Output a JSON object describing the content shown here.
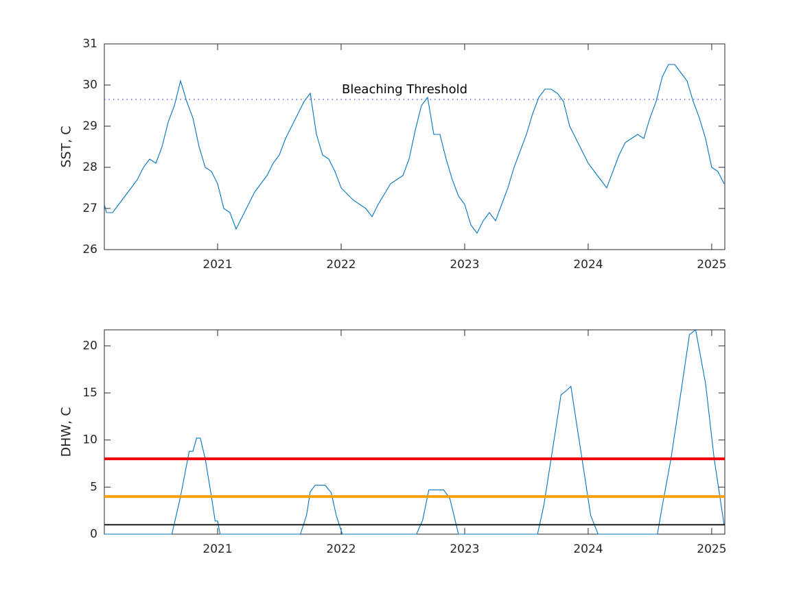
{
  "chart_data": [
    {
      "type": "line",
      "ylabel": "SST, C",
      "color": "#0072bd",
      "x": [
        2020.083,
        2020.1,
        2020.15,
        2020.2,
        2020.25,
        2020.3,
        2020.35,
        2020.4,
        2020.45,
        2020.5,
        2020.55,
        2020.6,
        2020.65,
        2020.7,
        2020.75,
        2020.8,
        2020.85,
        2020.9,
        2020.95,
        2021.0,
        2021.05,
        2021.1,
        2021.15,
        2021.2,
        2021.25,
        2021.3,
        2021.35,
        2021.4,
        2021.45,
        2021.5,
        2021.55,
        2021.6,
        2021.65,
        2021.7,
        2021.75,
        2021.8,
        2021.85,
        2021.9,
        2021.95,
        2022.0,
        2022.1,
        2022.2,
        2022.25,
        2022.3,
        2022.4,
        2022.5,
        2022.55,
        2022.6,
        2022.65,
        2022.7,
        2022.75,
        2022.8,
        2022.85,
        2022.9,
        2022.95,
        2023.0,
        2023.05,
        2023.1,
        2023.15,
        2023.2,
        2023.25,
        2023.3,
        2023.35,
        2023.4,
        2023.45,
        2023.5,
        2023.55,
        2023.6,
        2023.65,
        2023.7,
        2023.75,
        2023.8,
        2023.85,
        2023.9,
        2023.95,
        2024.0,
        2024.05,
        2024.1,
        2024.15,
        2024.2,
        2024.25,
        2024.3,
        2024.35,
        2024.4,
        2024.45,
        2024.5,
        2024.55,
        2024.6,
        2024.65,
        2024.7,
        2024.75,
        2024.8,
        2024.85,
        2024.9,
        2024.95,
        2025.0,
        2025.05,
        2025.1
      ],
      "values": [
        27.1,
        26.9,
        26.9,
        27.1,
        27.3,
        27.5,
        27.7,
        28.0,
        28.2,
        28.1,
        28.5,
        29.1,
        29.5,
        30.1,
        29.6,
        29.2,
        28.5,
        28.0,
        27.9,
        27.6,
        27.0,
        26.9,
        26.5,
        26.8,
        27.1,
        27.4,
        27.6,
        27.8,
        28.1,
        28.3,
        28.7,
        29.0,
        29.3,
        29.6,
        29.8,
        28.8,
        28.3,
        28.2,
        27.9,
        27.5,
        27.2,
        27.0,
        26.8,
        27.1,
        27.6,
        27.8,
        28.2,
        28.9,
        29.5,
        29.7,
        28.8,
        28.8,
        28.2,
        27.7,
        27.3,
        27.1,
        26.6,
        26.4,
        26.7,
        26.9,
        26.7,
        27.1,
        27.5,
        28.0,
        28.4,
        28.8,
        29.3,
        29.7,
        29.9,
        29.9,
        29.8,
        29.6,
        29.0,
        28.7,
        28.4,
        28.1,
        27.9,
        27.7,
        27.5,
        27.9,
        28.3,
        28.6,
        28.7,
        28.8,
        28.7,
        29.2,
        29.6,
        30.2,
        30.5,
        30.5,
        30.3,
        30.1,
        29.6,
        29.2,
        28.7,
        28.0,
        27.9,
        27.6
      ],
      "xlim": [
        2020.083,
        2025.106
      ],
      "xticks": [
        2021,
        2022,
        2023,
        2024,
        2025
      ],
      "ylim": [
        26,
        31
      ],
      "yticks": [
        26,
        27,
        28,
        29,
        30,
        31
      ],
      "threshold": {
        "value": 29.65,
        "label": "Bleaching Threshold",
        "color": "#5b5bf0"
      }
    },
    {
      "type": "line",
      "ylabel": "DHW, C",
      "color": "#0072bd",
      "x": [
        2020.083,
        2020.63,
        2020.7,
        2020.77,
        2020.8,
        2020.83,
        2020.86,
        2020.9,
        2020.95,
        2020.98,
        2021.0,
        2021.02,
        2021.67,
        2021.72,
        2021.75,
        2021.79,
        2021.87,
        2021.92,
        2021.96,
        2022.01,
        2022.61,
        2022.66,
        2022.71,
        2022.83,
        2022.88,
        2022.95,
        2023.59,
        2023.64,
        2023.7,
        2023.78,
        2023.82,
        2023.86,
        2023.95,
        2024.02,
        2024.08,
        2024.56,
        2024.6,
        2024.67,
        2024.75,
        2024.82,
        2024.87,
        2024.95,
        2025.02,
        2025.1
      ],
      "values": [
        0,
        0,
        4,
        8.8,
        8.8,
        10.2,
        10.2,
        8,
        4,
        1.4,
        1.4,
        0,
        0,
        2,
        4.5,
        5.2,
        5.2,
        4.4,
        2,
        0,
        0,
        1.5,
        4.7,
        4.7,
        3.8,
        0,
        0,
        3,
        8,
        14.8,
        15.2,
        15.7,
        8,
        2,
        0,
        0,
        3,
        8,
        15,
        21.2,
        21.7,
        16,
        8,
        1
      ],
      "xlim": [
        2020.083,
        2025.106
      ],
      "xticks": [
        2021,
        2022,
        2023,
        2024,
        2025
      ],
      "ylim": [
        0,
        21.7
      ],
      "yticks": [
        0,
        5,
        10,
        15,
        20
      ],
      "hlines": [
        {
          "value": 8,
          "color": "#ee0000"
        },
        {
          "value": 4,
          "color": "#f5a00f"
        },
        {
          "value": 1,
          "color": "#1a1a1a"
        }
      ]
    }
  ]
}
